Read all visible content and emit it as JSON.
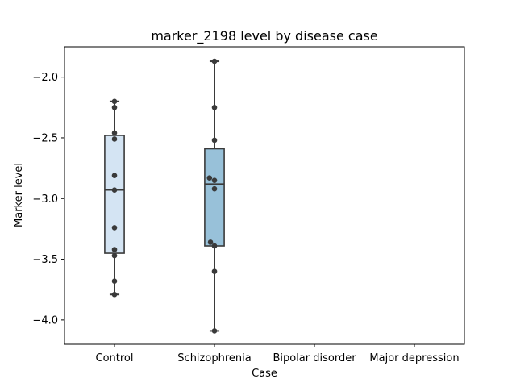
{
  "chart_data": {
    "type": "box",
    "title": "marker_2198 level by disease case",
    "xlabel": "Case",
    "ylabel": "Marker level",
    "categories": [
      "Control",
      "Schizophrenia",
      "Bipolar disorder",
      "Major depression"
    ],
    "ylim": [
      -4.2,
      -1.75
    ],
    "yticks": [
      -4.0,
      -3.5,
      -3.0,
      -2.5,
      -2.0
    ],
    "ytick_labels": [
      "−4.0",
      "−3.5",
      "−3.0",
      "−2.5",
      "−2.0"
    ],
    "grid": false,
    "boxes": [
      {
        "category": "Control",
        "q1": -3.45,
        "median": -2.93,
        "q3": -2.48,
        "whisker_low": -3.79,
        "whisker_high": -2.2,
        "color": "#d4e4f3"
      },
      {
        "category": "Schizophrenia",
        "q1": -3.39,
        "median": -2.88,
        "q3": -2.59,
        "whisker_low": -4.09,
        "whisker_high": -1.87,
        "color": "#98c1d9"
      }
    ],
    "points": [
      {
        "category": "Control",
        "values": [
          -2.2,
          -2.25,
          -2.46,
          -2.51,
          -2.81,
          -2.93,
          -3.24,
          -3.42,
          -3.47,
          -3.68,
          -3.79
        ],
        "offsets": [
          0,
          0,
          0,
          0,
          0,
          0,
          0,
          0,
          0,
          0,
          0
        ]
      },
      {
        "category": "Schizophrenia",
        "values": [
          -1.87,
          -2.25,
          -2.52,
          -2.83,
          -2.85,
          -2.92,
          -3.36,
          -3.39,
          -3.6,
          -4.09
        ],
        "offsets": [
          0,
          0,
          0,
          -0.05,
          0,
          0,
          -0.04,
          0,
          0,
          0
        ]
      }
    ],
    "colors": {
      "box_edge": "#3a3a3a",
      "point": "#3a3a3a",
      "axis": "#000000"
    }
  }
}
